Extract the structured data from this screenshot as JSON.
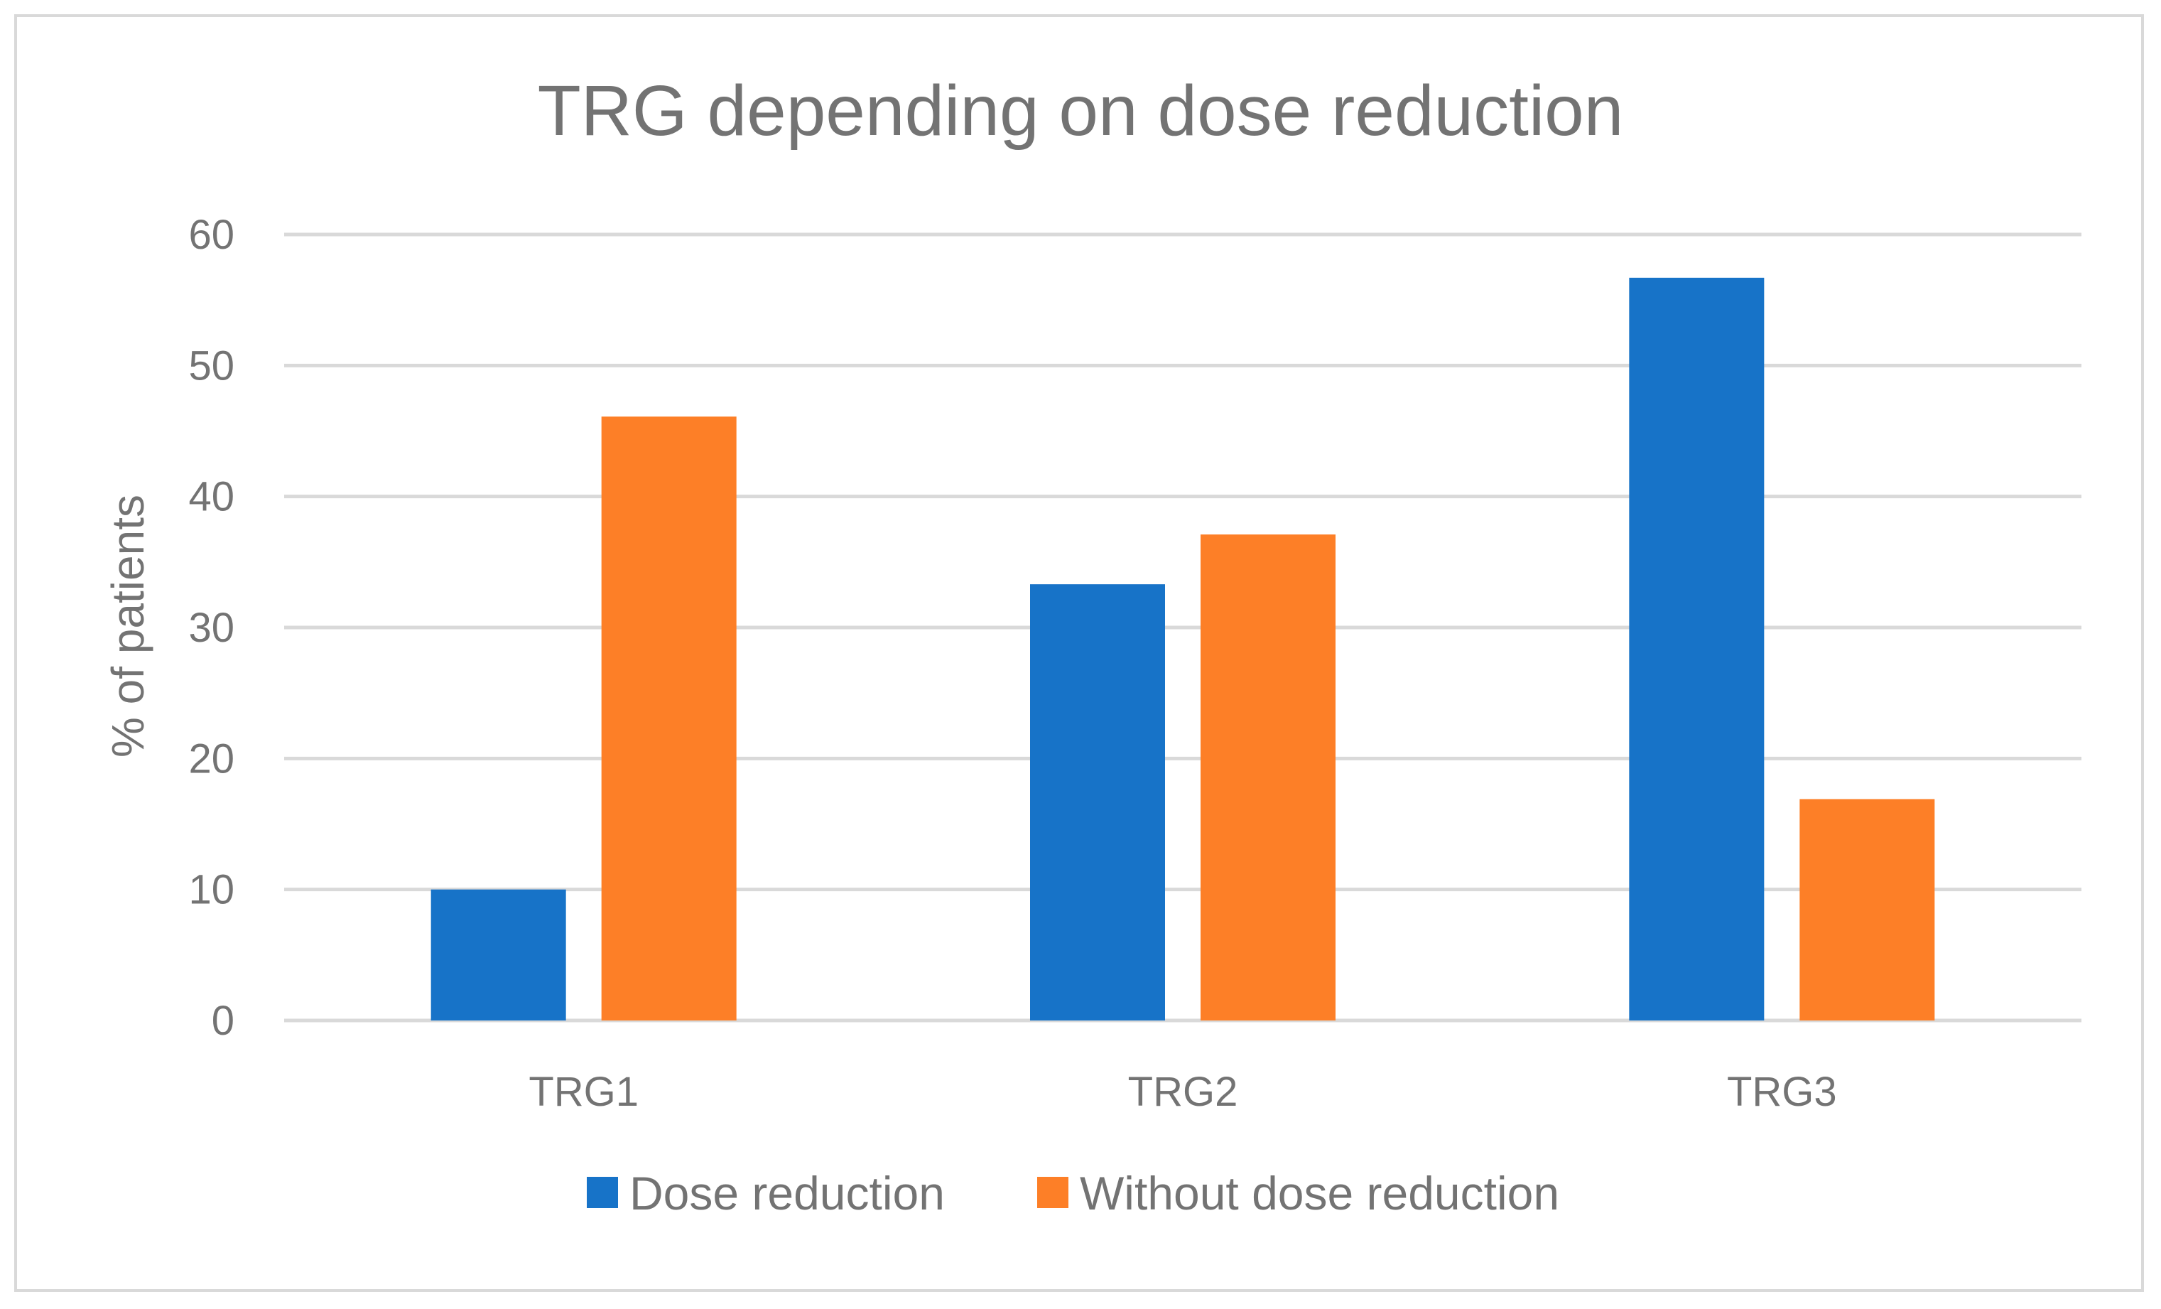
{
  "chart_data": {
    "type": "bar",
    "title": "TRG depending on dose reduction",
    "xlabel": "",
    "ylabel": "% of patients",
    "categories": [
      "TRG1",
      "TRG2",
      "TRG3"
    ],
    "series": [
      {
        "name": "Dose reduction",
        "color": "#1773c8",
        "values": [
          10,
          33.3,
          56.7
        ]
      },
      {
        "name": "Without dose reduction",
        "color": "#fd7f27",
        "values": [
          46.1,
          37.1,
          16.9
        ]
      }
    ],
    "ylim": [
      0,
      60
    ],
    "yticks": [
      "0",
      "10",
      "20",
      "30",
      "40",
      "50",
      "60"
    ],
    "grid": true,
    "legend_position": "bottom"
  }
}
